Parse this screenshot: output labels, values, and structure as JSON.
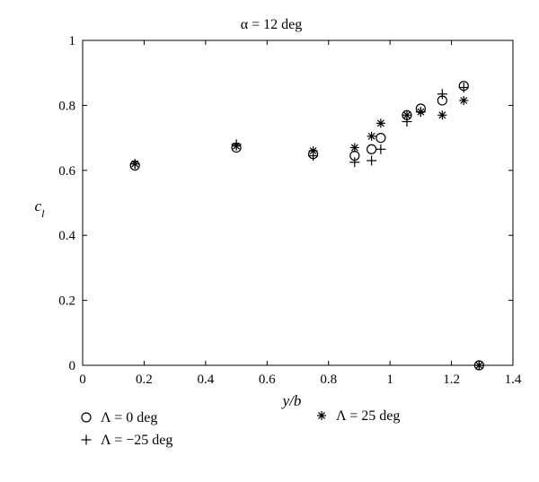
{
  "chart_data": {
    "type": "scatter",
    "title": "α = 12 deg",
    "xlabel": "y/b",
    "ylabel": "c_l",
    "xlim": [
      0,
      1.4
    ],
    "ylim": [
      0,
      1
    ],
    "xticks": [
      "0",
      "0.2",
      "0.4",
      "0.6",
      "0.8",
      "1",
      "1.2",
      "1.4"
    ],
    "yticks": [
      "0",
      "0.2",
      "0.4",
      "0.6",
      "0.8",
      "1"
    ],
    "grid": false,
    "legend_placement": "bottom",
    "series": [
      {
        "name": "Λ = 0 deg",
        "marker": "circle",
        "x": [
          0.17,
          0.5,
          0.75,
          0.885,
          0.94,
          0.97,
          1.055,
          1.1,
          1.17,
          1.24,
          1.29
        ],
        "y": [
          0.615,
          0.67,
          0.65,
          0.645,
          0.665,
          0.7,
          0.77,
          0.79,
          0.815,
          0.86,
          0.0
        ]
      },
      {
        "name": "Λ = −25 deg",
        "marker": "plus",
        "x": [
          0.17,
          0.5,
          0.75,
          0.885,
          0.94,
          0.97,
          1.055,
          1.1,
          1.17,
          1.24,
          1.29
        ],
        "y": [
          0.62,
          0.68,
          0.645,
          0.625,
          0.63,
          0.665,
          0.75,
          0.78,
          0.835,
          0.855,
          0.0
        ]
      },
      {
        "name": "Λ = 25 deg",
        "marker": "asterisk",
        "x": [
          0.17,
          0.5,
          0.75,
          0.885,
          0.94,
          0.97,
          1.055,
          1.1,
          1.17,
          1.24,
          1.29
        ],
        "y": [
          0.62,
          0.675,
          0.66,
          0.67,
          0.705,
          0.745,
          0.77,
          0.78,
          0.77,
          0.815,
          0.0
        ]
      }
    ]
  }
}
